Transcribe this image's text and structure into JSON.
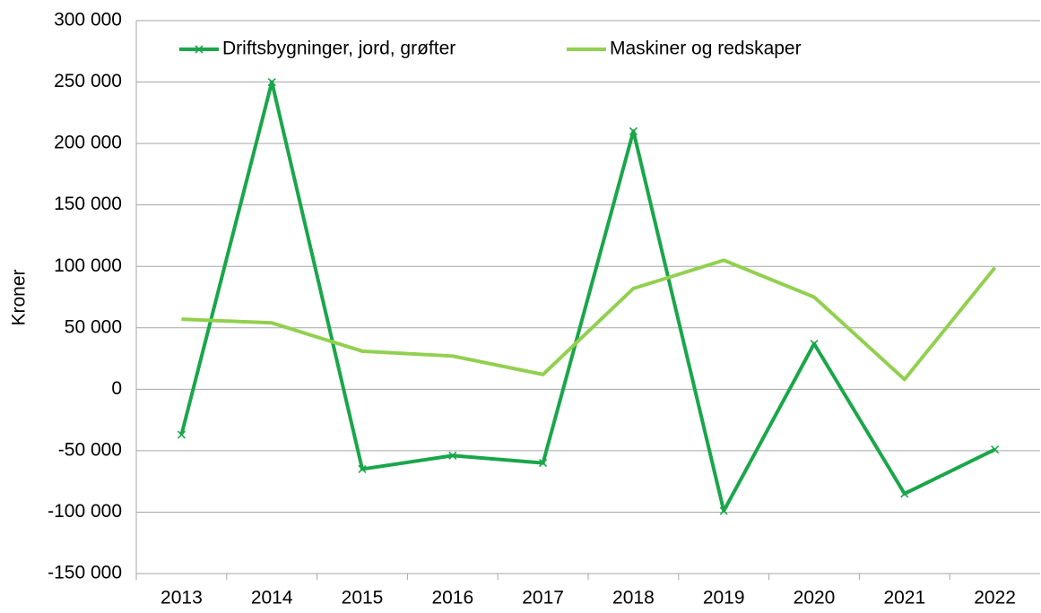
{
  "chart_data": {
    "type": "line",
    "y_label": "Kroner",
    "categories": [
      "2013",
      "2014",
      "2015",
      "2016",
      "2017",
      "2018",
      "2019",
      "2020",
      "2021",
      "2022"
    ],
    "series": [
      {
        "name": "Driftsbygninger, jord, grøfter",
        "color": "#1aa64a",
        "marker": "x",
        "values": [
          -37000,
          250000,
          -65000,
          -54000,
          -60000,
          210000,
          -99000,
          37000,
          -85000,
          -49000
        ]
      },
      {
        "name": "Maskiner og redskaper",
        "color": "#92d050",
        "values": [
          57000,
          54000,
          31000,
          27000,
          12000,
          82000,
          105000,
          75000,
          8000,
          99000
        ]
      }
    ],
    "ylim": [
      -150000,
      300000
    ],
    "yticks": [
      {
        "value": -150000,
        "label": "-150 000"
      },
      {
        "value": -100000,
        "label": "-100 000"
      },
      {
        "value": -50000,
        "label": "-50 000"
      },
      0,
      {
        "value": 50000,
        "label": "50 000"
      },
      {
        "value": 100000,
        "label": "100 000"
      },
      {
        "value": 150000,
        "label": "150 000"
      },
      {
        "value": 200000,
        "label": "200 000"
      },
      {
        "value": 250000,
        "label": "250 000"
      },
      {
        "value": 300000,
        "label": "300 000"
      }
    ],
    "grid": true,
    "legend": "top"
  }
}
